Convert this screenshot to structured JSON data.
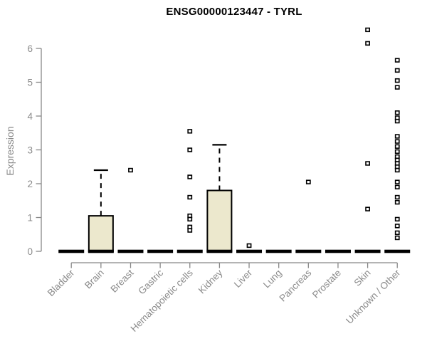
{
  "title": "ENSG00000123447 - TYRL",
  "colors": {
    "background": "#ffffff",
    "box_fill": "#ece8cd",
    "box_border": "#000000",
    "median": "#000000",
    "whisker": "#000000",
    "outlier_fill": "#ffffff",
    "outlier_border": "#000000",
    "axis": "#888888",
    "tick_label": "#8a8a8a",
    "title_color": "#000000"
  },
  "chart_data": {
    "type": "boxplot",
    "title": "ENSG00000123447 - TYRL",
    "xlabel": "",
    "ylabel": "Expression",
    "ylim": [
      0,
      6.8
    ],
    "yticks": [
      0,
      1,
      2,
      3,
      4,
      5,
      6
    ],
    "grid": false,
    "legend": "none",
    "categories": [
      "Bladder",
      "Brain",
      "Breast",
      "Gastric",
      "Hematopoietic cells",
      "Kidney",
      "Liver",
      "Lung",
      "Pancreas",
      "Prostate",
      "Skin",
      "Unknown / Other"
    ],
    "series": [
      {
        "name": "Bladder",
        "q1": 0,
        "median": 0,
        "q3": 0,
        "whisker_low": 0,
        "whisker_high": 0,
        "outliers": []
      },
      {
        "name": "Brain",
        "q1": 0,
        "median": 0,
        "q3": 1.05,
        "whisker_low": 0,
        "whisker_high": 2.4,
        "outliers": []
      },
      {
        "name": "Breast",
        "q1": 0,
        "median": 0,
        "q3": 0,
        "whisker_low": 0,
        "whisker_high": 0,
        "outliers": [
          2.4
        ]
      },
      {
        "name": "Gastric",
        "q1": 0,
        "median": 0,
        "q3": 0,
        "whisker_low": 0,
        "whisker_high": 0,
        "outliers": []
      },
      {
        "name": "Hematopoietic cells",
        "q1": 0,
        "median": 0,
        "q3": 0,
        "whisker_low": 0,
        "whisker_high": 0,
        "outliers": [
          3.55,
          3.0,
          2.2,
          1.6,
          1.05,
          0.95,
          0.72,
          0.62
        ]
      },
      {
        "name": "Kidney",
        "q1": 0,
        "median": 0,
        "q3": 1.8,
        "whisker_low": 0,
        "whisker_high": 3.15,
        "outliers": []
      },
      {
        "name": "Liver",
        "q1": 0,
        "median": 0,
        "q3": 0,
        "whisker_low": 0,
        "whisker_high": 0,
        "outliers": [
          0.17
        ]
      },
      {
        "name": "Lung",
        "q1": 0,
        "median": 0,
        "q3": 0,
        "whisker_low": 0,
        "whisker_high": 0,
        "outliers": []
      },
      {
        "name": "Pancreas",
        "q1": 0,
        "median": 0,
        "q3": 0,
        "whisker_low": 0,
        "whisker_high": 0,
        "outliers": [
          2.05
        ]
      },
      {
        "name": "Prostate",
        "q1": 0,
        "median": 0,
        "q3": 0,
        "whisker_low": 0,
        "whisker_high": 0,
        "outliers": []
      },
      {
        "name": "Skin",
        "q1": 0,
        "median": 0,
        "q3": 0,
        "whisker_low": 0,
        "whisker_high": 0,
        "outliers": [
          6.55,
          6.15,
          2.6,
          1.25
        ]
      },
      {
        "name": "Unknown / Other",
        "q1": 0,
        "median": 0,
        "q3": 0,
        "whisker_low": 0,
        "whisker_high": 0,
        "outliers": [
          5.65,
          5.35,
          5.05,
          4.85,
          4.1,
          3.95,
          3.85,
          3.4,
          3.25,
          3.1,
          2.95,
          2.8,
          2.7,
          2.6,
          2.5,
          2.4,
          2.05,
          1.9,
          1.6,
          1.45,
          0.95,
          0.75,
          0.55,
          0.4
        ]
      }
    ]
  }
}
